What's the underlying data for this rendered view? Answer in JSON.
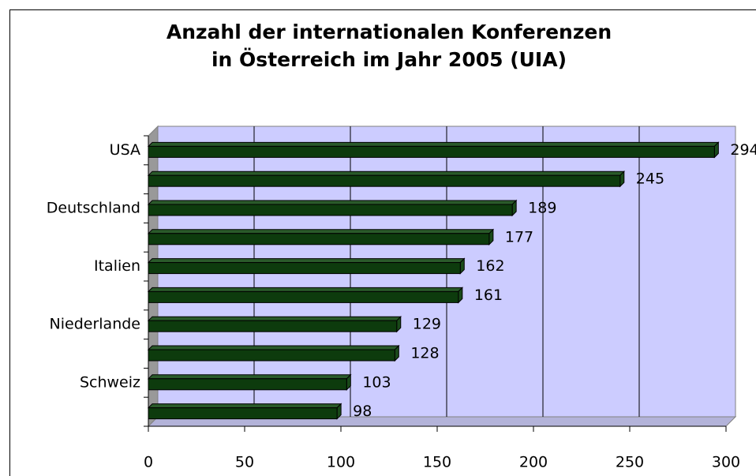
{
  "chart_data": {
    "type": "bar",
    "orientation": "horizontal",
    "title": [
      "Anzahl der internationalen Konferenzen",
      "in Österreich im Jahr 2005 (UIA)"
    ],
    "categories": [
      "USA",
      null,
      "Deutschland",
      null,
      "Italien",
      null,
      "Niederlande",
      null,
      "Schweiz",
      null
    ],
    "values": [
      294,
      245,
      189,
      177,
      162,
      161,
      129,
      128,
      103,
      98
    ],
    "color": "#0d3b0d",
    "xlim": [
      0,
      300
    ],
    "xticks": [
      0,
      50,
      100,
      150,
      200,
      250,
      300
    ],
    "grid": true
  }
}
